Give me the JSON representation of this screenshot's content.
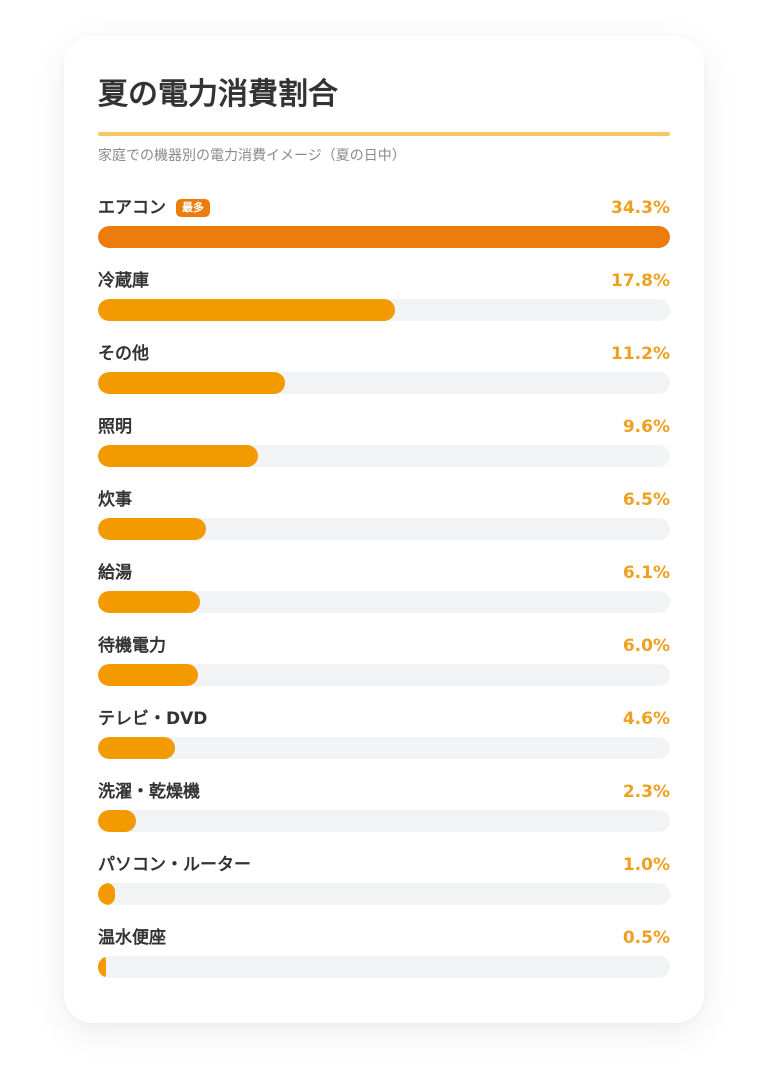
{
  "colors": {
    "accent": "#f39a00",
    "accent_top": "#ec7c0c",
    "value_text": "#f0a020",
    "rule": "#f6c85f",
    "track": "#f2f3f5"
  },
  "chart_data": {
    "type": "bar",
    "orientation": "horizontal",
    "title": "夏の電力消費割合",
    "subtitle": "家庭での機器別の電力消費イメージ（夏の日中）",
    "xlim": [
      0,
      34.3
    ],
    "unit": "%",
    "badge": "最多",
    "categories": [
      "エアコン",
      "冷蔵庫",
      "その他",
      "照明",
      "炊事",
      "給湯",
      "待機電力",
      "テレビ・DVD",
      "洗濯・乾燥機",
      "パソコン・ルーター",
      "温水便座"
    ],
    "values": [
      34.3,
      17.8,
      11.2,
      9.6,
      6.5,
      6.1,
      6.0,
      4.6,
      2.3,
      1.0,
      0.5
    ],
    "value_labels": [
      "34.3%",
      "17.8%",
      "11.2%",
      "9.6%",
      "6.5%",
      "6.1%",
      "6.0%",
      "4.6%",
      "2.3%",
      "1.0%",
      "0.5%"
    ]
  }
}
